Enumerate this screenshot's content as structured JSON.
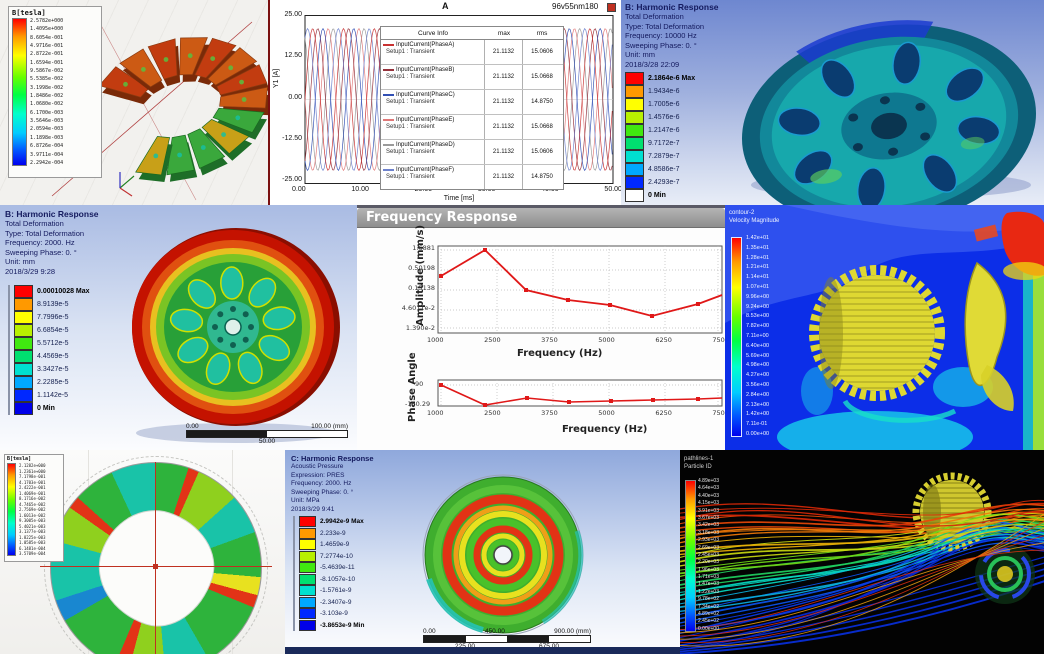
{
  "panels": {
    "coil_field": {
      "legend_title": "B[tesla]",
      "legend_values": [
        "2.5782e+000",
        "1.4095e+000",
        "8.6054e-001",
        "4.9716e-001",
        "2.8722e-001",
        "1.6594e-001",
        "9.5867e-002",
        "5.5385e-002",
        "3.1998e-002",
        "1.8486e-002",
        "1.0680e-002",
        "6.1700e-003",
        "3.5646e-003",
        "2.0594e-003",
        "1.1898e-003",
        "6.8726e-004",
        "3.9711e-004",
        "2.2942e-004"
      ]
    },
    "current_plot": {
      "corner_label": "A",
      "title": "96v55nm180",
      "ylabel": "Y1 [A]",
      "xlabel": "Time [ms]",
      "y_ticks": [
        "25.00",
        "12.50",
        "0.00",
        "-12.50",
        "-25.00"
      ],
      "x_ticks": [
        "0.00",
        "10.00",
        "20.00",
        "30.00",
        "40.00",
        "50.00"
      ],
      "table": {
        "headers": [
          "Curve Info",
          "max",
          "rms"
        ],
        "rows": [
          {
            "name": "InputCurrent(PhaseA)",
            "setup": "Setup1 : Transient",
            "max": "21.1132",
            "rms": "15.0606",
            "color": "#c83232"
          },
          {
            "name": "InputCurrent(PhaseB)",
            "setup": "Setup1 : Transient",
            "max": "21.1132",
            "rms": "15.0668",
            "color": "#96323c"
          },
          {
            "name": "InputCurrent(PhaseC)",
            "setup": "Setup1 : Transient",
            "max": "21.1132",
            "rms": "14.8750",
            "color": "#3250b4"
          },
          {
            "name": "InputCurrent(PhaseE)",
            "setup": "Setup1 : Transient",
            "max": "21.1132",
            "rms": "15.0668",
            "color": "#e07878"
          },
          {
            "name": "InputCurrent(PhaseD)",
            "setup": "Setup1 : Transient",
            "max": "21.1132",
            "rms": "15.0606",
            "color": "#9a9a9a"
          },
          {
            "name": "InputCurrent(PhaseF)",
            "setup": "Setup1 : Transient",
            "max": "21.1132",
            "rms": "14.8750",
            "color": "#6e82cc"
          }
        ]
      }
    },
    "harmonic_wheel_10000": {
      "title": "B: Harmonic Response",
      "info_lines": [
        "Total Deformation",
        "Type: Total Deformation",
        "Frequency: 10000 Hz",
        "Sweeping Phase: 0. °",
        "Unit: mm",
        "2018/3/28 22:09"
      ],
      "legend": [
        {
          "v": "2.1864e-6 Max",
          "c": "#ff0000"
        },
        {
          "v": "1.9434e-6",
          "c": "#ff9900"
        },
        {
          "v": "1.7005e-6",
          "c": "#ffff00"
        },
        {
          "v": "1.4576e-6",
          "c": "#b8f000"
        },
        {
          "v": "1.2147e-6",
          "c": "#40e810"
        },
        {
          "v": "9.7172e-7",
          "c": "#00e070"
        },
        {
          "v": "7.2879e-7",
          "c": "#00e0d0"
        },
        {
          "v": "4.8586e-7",
          "c": "#00a8ff"
        },
        {
          "v": "2.4293e-7",
          "c": "#0028ff"
        },
        {
          "v": "0 Min",
          "c": "#ffffff"
        }
      ]
    },
    "harmonic_wheel_2000": {
      "title": "B: Harmonic Response",
      "info_lines": [
        "Total Deformation",
        "Type: Total Deformation",
        "Frequency: 2000. Hz",
        "Sweeping Phase: 0. °",
        "Unit: mm",
        "2018/3/29 9:28"
      ],
      "legend": [
        {
          "v": "0.00010028 Max",
          "c": "#ff0000"
        },
        {
          "v": "8.9139e-5",
          "c": "#ff9900"
        },
        {
          "v": "7.7996e-5",
          "c": "#ffff00"
        },
        {
          "v": "6.6854e-5",
          "c": "#b8f000"
        },
        {
          "v": "5.5712e-5",
          "c": "#40e810"
        },
        {
          "v": "4.4569e-5",
          "c": "#00e070"
        },
        {
          "v": "3.3427e-5",
          "c": "#00e0d0"
        },
        {
          "v": "2.2285e-5",
          "c": "#00a8ff"
        },
        {
          "v": "1.1142e-5",
          "c": "#0028ff"
        },
        {
          "v": "0 Min",
          "c": "#0000e8"
        }
      ],
      "scale_bar": {
        "left": "0.00",
        "right": "100.00 (mm)",
        "mid": "50.00"
      }
    },
    "frequency_response": {
      "window_title": "Frequency Response",
      "amplitude": {
        "ylabel": "Amplitude (mm/s)",
        "xlabel": "Frequency (Hz)",
        "y_ticks": [
          "1.6881",
          "0.50198",
          "0.15138",
          "4.6011e-2",
          "1.390e-2"
        ],
        "x_ticks": [
          "1000",
          "2500",
          "3750",
          "5000",
          "6250",
          "7500"
        ]
      },
      "phase": {
        "ylabel": "Phase Angle",
        "xlabel": "Frequency (Hz)",
        "y_ticks": [
          "90",
          "-160.29"
        ],
        "x_ticks": [
          "1000",
          "2500",
          "3750",
          "5000",
          "6250",
          "7500"
        ]
      }
    },
    "velocity_contour": {
      "legend_title_1": "contour-2",
      "legend_title_2": "Velocity Magnitude",
      "legend_values": [
        "1.42e+01",
        "1.35e+01",
        "1.28e+01",
        "1.21e+01",
        "1.14e+01",
        "1.07e+01",
        "9.96e+00",
        "9.24e+00",
        "8.53e+00",
        "7.82e+00",
        "7.11e+00",
        "6.40e+00",
        "5.69e+00",
        "4.98e+00",
        "4.27e+00",
        "3.56e+00",
        "2.84e+00",
        "2.13e+00",
        "1.42e+00",
        "7.11e-01",
        "0.00e+00"
      ]
    },
    "rotor_field": {
      "legend_title": "B[tesla]",
      "legend_values": [
        "2.1282e+000",
        "1.2361e+000",
        "7.1798e-001",
        "4.1703e-001",
        "2.4222e-001",
        "1.4069e-001",
        "8.1716e-002",
        "4.7465e-002",
        "2.7569e-002",
        "1.6013e-002",
        "9.3005e-003",
        "5.4021e-003",
        "3.1377e-003",
        "1.8225e-003",
        "1.0585e-003",
        "6.1481e-004",
        "3.5709e-004"
      ]
    },
    "acoustic_disc": {
      "title": "C: Harmonic Response",
      "info_lines": [
        "Acoustic Pressure",
        "Expression: PRES",
        "Frequency: 2000. Hz",
        "Sweeping Phase: 0. °",
        "Unit: MPa",
        "2018/3/29 9:41"
      ],
      "legend": [
        {
          "v": "2.9942e-9 Max",
          "c": "#ff0000"
        },
        {
          "v": "2.233e-9",
          "c": "#ff9900"
        },
        {
          "v": "1.4659e-9",
          "c": "#ffff00"
        },
        {
          "v": "7.2774e-10",
          "c": "#b8f000"
        },
        {
          "v": "-5.4639e-11",
          "c": "#40e810"
        },
        {
          "v": "-8.1057e-10",
          "c": "#00e070"
        },
        {
          "v": "-1.5761e-9",
          "c": "#00e0d0"
        },
        {
          "v": "-2.3407e-9",
          "c": "#00a8ff"
        },
        {
          "v": "-3.103e-9",
          "c": "#0028ff"
        },
        {
          "v": "-3.8653e-9 Min",
          "c": "#0000e8"
        }
      ],
      "scale_bar": {
        "left": "0.00",
        "mid": "450.00",
        "right": "900.00 (mm)",
        "q1": "225.00",
        "q3": "675.00"
      }
    },
    "particle_traces": {
      "legend_title_1": "pathlines-1",
      "legend_title_2": "Particle ID",
      "legend_values": [
        "4.89e+03",
        "4.64e+03",
        "4.40e+03",
        "4.15e+03",
        "3.91e+03",
        "3.67e+03",
        "3.42e+03",
        "3.18e+03",
        "2.93e+03",
        "2.69e+03",
        "2.45e+03",
        "2.20e+03",
        "1.96e+03",
        "1.71e+03",
        "1.47e+03",
        "1.22e+03",
        "9.78e+02",
        "7.34e+02",
        "4.89e+02",
        "2.45e+02",
        "0.00e+00"
      ]
    }
  },
  "chart_data": [
    {
      "type": "line",
      "title": "96v55nm180",
      "xlabel": "Time [ms]",
      "ylabel": "Y1 [A]",
      "xlim": [
        0,
        50
      ],
      "ylim": [
        -25,
        25
      ],
      "waveform": "sine",
      "period_ms": 5,
      "series": [
        {
          "name": "InputCurrent(PhaseA) Setup1 : Transient",
          "amplitude": 21.1132,
          "rms": 15.0606,
          "phase_deg": 0
        },
        {
          "name": "InputCurrent(PhaseB) Setup1 : Transient",
          "amplitude": 21.1132,
          "rms": 15.0668,
          "phase_deg": 300
        },
        {
          "name": "InputCurrent(PhaseC) Setup1 : Transient",
          "amplitude": 21.1132,
          "rms": 14.875,
          "phase_deg": 240
        },
        {
          "name": "InputCurrent(PhaseE) Setup1 : Transient",
          "amplitude": 21.1132,
          "rms": 15.0668,
          "phase_deg": 180
        },
        {
          "name": "InputCurrent(PhaseD) Setup1 : Transient",
          "amplitude": 21.1132,
          "rms": 15.0606,
          "phase_deg": 120
        },
        {
          "name": "InputCurrent(PhaseF) Setup1 : Transient",
          "amplitude": 21.1132,
          "rms": 14.875,
          "phase_deg": 60
        }
      ]
    },
    {
      "type": "line",
      "title": "Frequency Response - Amplitude",
      "xlabel": "Frequency (Hz)",
      "ylabel": "Amplitude (mm/s)",
      "yscale": "log",
      "x_ticks": [
        1000,
        2500,
        3750,
        5000,
        6250,
        7500
      ],
      "y_ticks": [
        1.6881,
        0.50198,
        0.15138,
        0.046011,
        0.0139
      ],
      "x": [
        1000,
        2000,
        3000,
        4000,
        5000,
        6000,
        7000,
        7500
      ],
      "y": [
        0.28,
        1.6881,
        0.115,
        0.058,
        0.045,
        0.016,
        0.044,
        0.09
      ],
      "legend_position": "none",
      "grid": true
    },
    {
      "type": "line",
      "title": "Frequency Response - Phase",
      "xlabel": "Frequency (Hz)",
      "ylabel": "Phase Angle",
      "x_ticks": [
        1000,
        2500,
        3750,
        5000,
        6250,
        7500
      ],
      "y_ticks": [
        90,
        -160.29
      ],
      "x": [
        1000,
        2000,
        3000,
        4000,
        5000,
        6000,
        7000,
        7500
      ],
      "y": [
        90,
        -160.29,
        -120,
        -140,
        -136,
        -132,
        -128,
        -125
      ],
      "legend_position": "none",
      "grid": true
    }
  ]
}
